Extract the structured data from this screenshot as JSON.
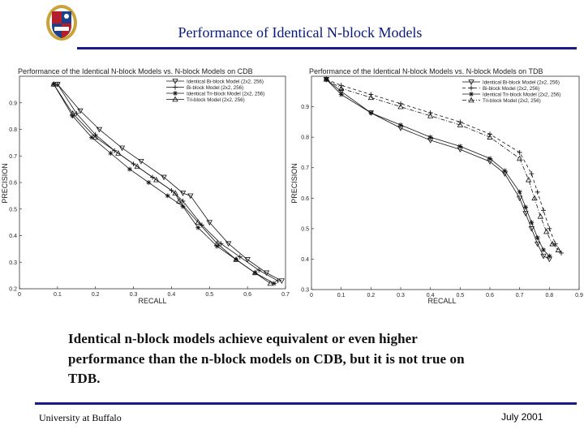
{
  "slide": {
    "title": "Performance of Identical N-block Models",
    "caption": "Identical n-block models achieve equivalent or even higher performance than the n-block models on CDB, but it is not true on TDB.",
    "footer_left": "University at Buffalo",
    "footer_right": "July 2001"
  },
  "colors": {
    "accent": "#1a1a8a",
    "title": "#0a1a7a",
    "logo_blue": "#1e3f8a",
    "logo_gold": "#c8a23a"
  },
  "chart_data": [
    {
      "type": "line",
      "title": "Performance of the Identical N-block Models vs. N-block Models on CDB",
      "xlabel": "RECALL",
      "ylabel": "PRECISION",
      "xlim": [
        0,
        0.7
      ],
      "ylim": [
        0.2,
        1.0
      ],
      "xticks": [
        0,
        0.1,
        0.2,
        0.3,
        0.4,
        0.5,
        0.6,
        0.7
      ],
      "yticks": [
        0.2,
        0.3,
        0.4,
        0.5,
        0.6,
        0.7,
        0.8,
        0.9
      ],
      "xtick_labels": [
        "0",
        "0.1",
        "0.2",
        "0.3",
        "0.4",
        "0.5",
        "0.6",
        "0.7"
      ],
      "ytick_labels": [
        "0.2",
        "0.3",
        "0.4",
        "0.5",
        "0.6",
        "0.7",
        "0.8",
        "0.9"
      ],
      "legend_position": "top-right",
      "grid": false,
      "series": [
        {
          "name": "Identical Bi-block Model (2x2, 256)",
          "marker": "v",
          "dash": "solid",
          "x": [
            0.1,
            0.16,
            0.21,
            0.27,
            0.32,
            0.38,
            0.43,
            0.45,
            0.5,
            0.55,
            0.6,
            0.65,
            0.69
          ],
          "y": [
            0.97,
            0.87,
            0.8,
            0.73,
            0.68,
            0.62,
            0.56,
            0.55,
            0.45,
            0.37,
            0.31,
            0.26,
            0.23
          ]
        },
        {
          "name": "Bi-block Model (2x2, 256)",
          "marker": "+",
          "dash": "solid",
          "x": [
            0.1,
            0.15,
            0.2,
            0.25,
            0.3,
            0.35,
            0.4,
            0.43,
            0.48,
            0.53,
            0.58,
            0.63,
            0.68
          ],
          "y": [
            0.97,
            0.86,
            0.78,
            0.72,
            0.67,
            0.62,
            0.57,
            0.53,
            0.44,
            0.37,
            0.32,
            0.27,
            0.23
          ]
        },
        {
          "name": "Identical Tri-block Model (2x2, 256)",
          "marker": "*",
          "dash": "solid",
          "x": [
            0.09,
            0.14,
            0.19,
            0.24,
            0.29,
            0.34,
            0.39,
            0.43,
            0.47,
            0.52,
            0.57,
            0.62,
            0.67
          ],
          "y": [
            0.97,
            0.85,
            0.77,
            0.71,
            0.65,
            0.6,
            0.55,
            0.51,
            0.43,
            0.36,
            0.31,
            0.26,
            0.22
          ]
        },
        {
          "name": "Tri-block Model (2x2, 256)",
          "marker": "^",
          "dash": "solid",
          "x": [
            0.09,
            0.14,
            0.2,
            0.26,
            0.31,
            0.36,
            0.41,
            0.42,
            0.47,
            0.52,
            0.57,
            0.62,
            0.66
          ],
          "y": [
            0.97,
            0.86,
            0.77,
            0.71,
            0.66,
            0.61,
            0.56,
            0.53,
            0.45,
            0.37,
            0.31,
            0.26,
            0.22
          ]
        }
      ]
    },
    {
      "type": "line",
      "title": "Performance of the Identical N-block Models vs. N-block Models on TDB",
      "xlabel": "RECALL",
      "ylabel": "PRECISION",
      "xlim": [
        0,
        0.9
      ],
      "ylim": [
        0.3,
        1.0
      ],
      "xticks": [
        0,
        0.1,
        0.2,
        0.3,
        0.4,
        0.5,
        0.6,
        0.7,
        0.8,
        0.9
      ],
      "yticks": [
        0.3,
        0.4,
        0.5,
        0.6,
        0.7,
        0.8,
        0.9
      ],
      "xtick_labels": [
        "0",
        "0.1",
        "0.2",
        "0.3",
        "0.4",
        "0.5",
        "0.6",
        "0.7",
        "0.8",
        "0.9"
      ],
      "ytick_labels": [
        "0.3",
        "0.4",
        "0.5",
        "0.6",
        "0.7",
        "0.8",
        "0.9"
      ],
      "legend_position": "top-right",
      "grid": false,
      "series": [
        {
          "name": "Identical Bi-block Model (2x2, 256)",
          "marker": "v",
          "dash": "solid",
          "x": [
            0.05,
            0.1,
            0.2,
            0.3,
            0.4,
            0.5,
            0.6,
            0.65,
            0.7,
            0.72,
            0.74,
            0.76,
            0.78,
            0.8
          ],
          "y": [
            0.99,
            0.95,
            0.88,
            0.83,
            0.79,
            0.76,
            0.72,
            0.68,
            0.6,
            0.55,
            0.5,
            0.45,
            0.41,
            0.4
          ]
        },
        {
          "name": "Bi-block Model (2x2, 256)",
          "marker": "+",
          "dash": "dash",
          "x": [
            0.05,
            0.1,
            0.2,
            0.3,
            0.4,
            0.5,
            0.6,
            0.7,
            0.74,
            0.76,
            0.78,
            0.8,
            0.82,
            0.84
          ],
          "y": [
            0.99,
            0.97,
            0.94,
            0.91,
            0.88,
            0.85,
            0.81,
            0.75,
            0.68,
            0.62,
            0.56,
            0.5,
            0.45,
            0.42
          ]
        },
        {
          "name": "Identical Tri-block Model (2x2, 256)",
          "marker": "*",
          "dash": "solid",
          "x": [
            0.05,
            0.1,
            0.2,
            0.3,
            0.4,
            0.5,
            0.6,
            0.65,
            0.7,
            0.72,
            0.74,
            0.76,
            0.78,
            0.8
          ],
          "y": [
            0.99,
            0.94,
            0.88,
            0.84,
            0.8,
            0.77,
            0.73,
            0.69,
            0.62,
            0.57,
            0.52,
            0.47,
            0.43,
            0.41
          ]
        },
        {
          "name": "Tri-block Model (2x2, 256)",
          "marker": "^",
          "dash": "dashdot",
          "x": [
            0.05,
            0.1,
            0.2,
            0.3,
            0.4,
            0.5,
            0.6,
            0.7,
            0.73,
            0.75,
            0.77,
            0.79,
            0.81,
            0.83
          ],
          "y": [
            0.99,
            0.96,
            0.93,
            0.9,
            0.87,
            0.84,
            0.8,
            0.73,
            0.66,
            0.6,
            0.54,
            0.49,
            0.45,
            0.43
          ]
        }
      ]
    }
  ]
}
